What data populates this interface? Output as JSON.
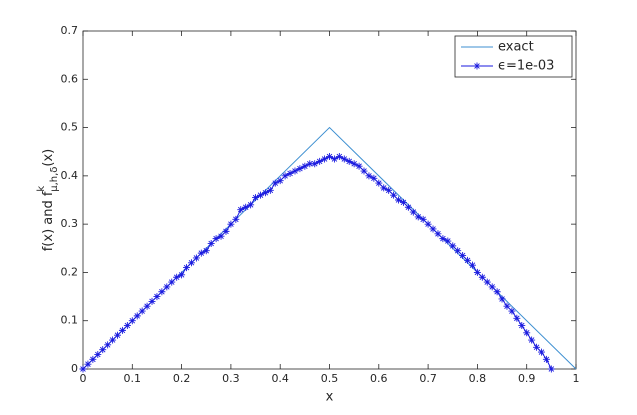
{
  "chart_data": {
    "type": "line",
    "xlabel": "x",
    "ylabel": {
      "main": "f(x) and f",
      "sup": "k",
      "sub": "μ,h,δ",
      "tail": "(x)"
    },
    "xlim": [
      0,
      1
    ],
    "xticks": [
      0,
      0.1,
      0.2,
      0.3,
      0.4,
      0.5,
      0.6,
      0.7,
      0.8,
      0.9,
      1
    ],
    "ylim": [
      0,
      0.7
    ],
    "yticks": [
      0,
      0.1,
      0.2,
      0.3,
      0.4,
      0.5,
      0.6,
      0.7
    ],
    "legend": "top-right",
    "series": [
      {
        "name": "exact",
        "color": "#3d8fd1",
        "marker": "none",
        "x": [
          0,
          0.5,
          1
        ],
        "values": [
          0,
          0.5,
          0
        ]
      },
      {
        "name": "ϵ=1e-03",
        "color": "#1a1adf",
        "marker": "asterisk",
        "x": [
          0,
          0.01,
          0.02,
          0.03,
          0.04,
          0.05,
          0.06,
          0.07,
          0.08,
          0.09,
          0.1,
          0.11,
          0.12,
          0.13,
          0.14,
          0.15,
          0.16,
          0.17,
          0.18,
          0.19,
          0.2,
          0.21,
          0.22,
          0.23,
          0.24,
          0.25,
          0.26,
          0.27,
          0.28,
          0.29,
          0.3,
          0.31,
          0.32,
          0.33,
          0.34,
          0.35,
          0.36,
          0.37,
          0.38,
          0.39,
          0.4,
          0.41,
          0.42,
          0.43,
          0.44,
          0.45,
          0.46,
          0.47,
          0.48,
          0.49,
          0.5,
          0.51,
          0.52,
          0.53,
          0.54,
          0.55,
          0.56,
          0.57,
          0.58,
          0.59,
          0.6,
          0.61,
          0.62,
          0.63,
          0.64,
          0.65,
          0.66,
          0.67,
          0.68,
          0.69,
          0.7,
          0.71,
          0.72,
          0.73,
          0.74,
          0.75,
          0.76,
          0.77,
          0.78,
          0.79,
          0.8,
          0.81,
          0.82,
          0.83,
          0.84,
          0.85,
          0.86,
          0.87,
          0.88,
          0.89,
          0.9,
          0.91,
          0.92,
          0.93,
          0.94,
          0.95
        ],
        "values": [
          0,
          0.01,
          0.02,
          0.03,
          0.04,
          0.05,
          0.06,
          0.07,
          0.08,
          0.09,
          0.1,
          0.11,
          0.12,
          0.13,
          0.14,
          0.15,
          0.16,
          0.17,
          0.18,
          0.19,
          0.195,
          0.21,
          0.22,
          0.23,
          0.24,
          0.245,
          0.26,
          0.27,
          0.275,
          0.285,
          0.3,
          0.31,
          0.33,
          0.335,
          0.34,
          0.355,
          0.36,
          0.365,
          0.37,
          0.385,
          0.39,
          0.4,
          0.405,
          0.41,
          0.415,
          0.42,
          0.425,
          0.425,
          0.43,
          0.435,
          0.44,
          0.435,
          0.44,
          0.435,
          0.43,
          0.425,
          0.42,
          0.41,
          0.4,
          0.395,
          0.385,
          0.375,
          0.37,
          0.36,
          0.35,
          0.345,
          0.335,
          0.325,
          0.315,
          0.31,
          0.3,
          0.29,
          0.28,
          0.27,
          0.265,
          0.255,
          0.245,
          0.235,
          0.225,
          0.215,
          0.2,
          0.19,
          0.18,
          0.17,
          0.16,
          0.145,
          0.13,
          0.12,
          0.105,
          0.09,
          0.075,
          0.06,
          0.045,
          0.035,
          0.02,
          0
        ]
      }
    ]
  }
}
